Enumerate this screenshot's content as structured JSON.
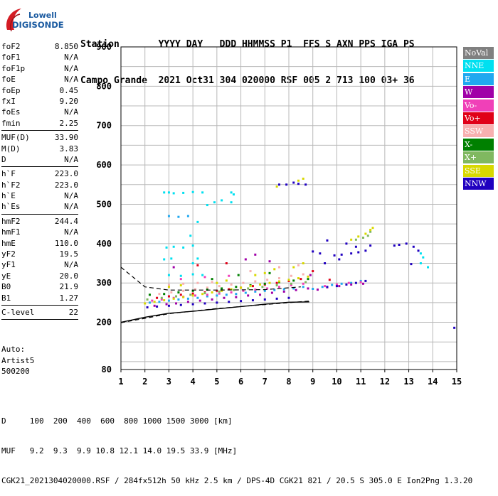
{
  "logo": {
    "line1": "Lowell",
    "line2": "DIGISONDE"
  },
  "header": {
    "line1": "Station       YYYY DAY   DDD HHMMSS P1  FFS S AXN PPS IGA PS",
    "line2": "Campo Grande  2021 Oct31 304 020000 RSF 005 2 713 100 03+ 36"
  },
  "params": {
    "group1": [
      {
        "name": "foF2",
        "value": "8.850"
      },
      {
        "name": "foF1",
        "value": "N/A"
      },
      {
        "name": "foF1p",
        "value": "N/A"
      },
      {
        "name": "foE",
        "value": "N/A"
      },
      {
        "name": "foEp",
        "value": "0.45"
      },
      {
        "name": "fxI",
        "value": "9.20"
      },
      {
        "name": "foEs",
        "value": "N/A"
      },
      {
        "name": "fmin",
        "value": "2.25"
      }
    ],
    "group2": [
      {
        "name": "MUF(D)",
        "value": "33.90"
      },
      {
        "name": "M(D)",
        "value": "3.83"
      },
      {
        "name": "D",
        "value": "N/A"
      }
    ],
    "group3": [
      {
        "name": "h`F",
        "value": "223.0"
      },
      {
        "name": "h`F2",
        "value": "223.0"
      },
      {
        "name": "h`E",
        "value": "N/A"
      },
      {
        "name": "h`Es",
        "value": "N/A"
      }
    ],
    "group4": [
      {
        "name": "hmF2",
        "value": "244.4"
      },
      {
        "name": "hmF1",
        "value": "N/A"
      },
      {
        "name": "hmE",
        "value": "110.0"
      },
      {
        "name": "yF2",
        "value": "19.5"
      },
      {
        "name": "yF1",
        "value": "N/A"
      },
      {
        "name": "yE",
        "value": "20.0"
      },
      {
        "name": "B0",
        "value": "21.9"
      },
      {
        "name": "B1",
        "value": "1.27"
      }
    ],
    "group5": [
      {
        "name": "C-level",
        "value": "22"
      }
    ]
  },
  "auto": {
    "line1": "Auto:",
    "line2": "Artist5",
    "line3": "500200"
  },
  "legend": [
    {
      "label": "NoVal",
      "color": "#808080",
      "text_color": "#ffffff"
    },
    {
      "label": "NNE",
      "color": "#00e0f0",
      "text_color": "#ffffff"
    },
    {
      "label": "E",
      "color": "#20a8f0",
      "text_color": "#ffffff"
    },
    {
      "label": "W",
      "color": "#a000a8",
      "text_color": "#ffffff"
    },
    {
      "label": "Vo-",
      "color": "#f040b8",
      "text_color": "#ffffff"
    },
    {
      "label": "Vo+",
      "color": "#e00018",
      "text_color": "#ffffff"
    },
    {
      "label": "SSW",
      "color": "#f8b0b0",
      "text_color": "#ffffff"
    },
    {
      "label": "X-",
      "color": "#008000",
      "text_color": "#ffffff"
    },
    {
      "label": "X+",
      "color": "#80b860",
      "text_color": "#ffffff"
    },
    {
      "label": "SSE",
      "color": "#d8d800",
      "text_color": "#ffffff"
    },
    {
      "label": "NNW",
      "color": "#2000c0",
      "text_color": "#ffffff"
    }
  ],
  "bottom": {
    "line1": "D     100  200  400  600  800 1000 1500 3000 [km]",
    "line2": "MUF   9.2  9.3  9.9 10.8 12.1 14.0 19.5 33.9 [MHz]",
    "line3": "CGK21_2021304020000.RSF / 284fx512h 50 kHz 2.5 km / DPS-4D CGK21 821 / 20.5 S 305.0 E Ion2Png 1.3.20"
  },
  "chart_data": {
    "type": "scatter",
    "title": "",
    "xlabel": "",
    "ylabel": "",
    "xlim": [
      1,
      15
    ],
    "ylim": [
      80,
      900
    ],
    "x_ticks": [
      "1",
      "2",
      "3",
      "4",
      "5",
      "6",
      "7",
      "8",
      "9",
      "10",
      "11",
      "12",
      "13",
      "14",
      "15"
    ],
    "y_ticks": [
      "80",
      "200",
      "300",
      "400",
      "500",
      "600",
      "700",
      "800",
      "900"
    ],
    "grid": true,
    "legend_position": "right",
    "profile_curve": [
      [
        1.0,
        200
      ],
      [
        2.0,
        213
      ],
      [
        3.0,
        223
      ],
      [
        4.0,
        228
      ],
      [
        5.0,
        234
      ],
      [
        6.0,
        240
      ],
      [
        7.0,
        246
      ],
      [
        8.0,
        251
      ],
      [
        8.85,
        252
      ]
    ],
    "trace_upper_dashed": [
      [
        1.0,
        340
      ],
      [
        2.0,
        290
      ],
      [
        3.0,
        282
      ],
      [
        5.0,
        282
      ],
      [
        7.0,
        283
      ],
      [
        8.5,
        290
      ]
    ],
    "trace_lower_dashed": [
      [
        1.0,
        199
      ],
      [
        2.0,
        210
      ],
      [
        3.0,
        222
      ],
      [
        5.0,
        235
      ],
      [
        7.0,
        245
      ],
      [
        8.0,
        250
      ],
      [
        8.85,
        254
      ]
    ],
    "series": [
      {
        "name": "NNE",
        "points": [
          [
            2.8,
            530
          ],
          [
            3.0,
            530
          ],
          [
            3.2,
            528
          ],
          [
            3.6,
            529
          ],
          [
            4.0,
            531
          ],
          [
            4.4,
            530
          ],
          [
            2.9,
            390
          ],
          [
            3.2,
            392
          ],
          [
            3.6,
            390
          ],
          [
            4.0,
            395
          ],
          [
            2.8,
            360
          ],
          [
            3.1,
            362
          ],
          [
            4.2,
            362
          ],
          [
            3.0,
            320
          ],
          [
            3.5,
            318
          ],
          [
            4.0,
            322
          ],
          [
            4.4,
            320
          ],
          [
            4.6,
            498
          ],
          [
            4.9,
            505
          ],
          [
            5.2,
            510
          ],
          [
            5.6,
            505
          ],
          [
            13.5,
            375
          ],
          [
            13.6,
            365
          ],
          [
            13.5,
            350
          ],
          [
            13.8,
            340
          ],
          [
            3.9,
            420
          ],
          [
            4.2,
            455
          ],
          [
            4.0,
            350
          ],
          [
            5.6,
            530
          ],
          [
            5.7,
            525
          ]
        ]
      },
      {
        "name": "E",
        "points": [
          [
            2.2,
            250
          ],
          [
            2.6,
            252
          ],
          [
            3.0,
            255
          ],
          [
            3.4,
            258
          ],
          [
            3.8,
            260
          ],
          [
            4.2,
            262
          ],
          [
            4.6,
            266
          ],
          [
            5.0,
            268
          ],
          [
            5.4,
            270
          ],
          [
            5.8,
            272
          ],
          [
            6.2,
            275
          ],
          [
            6.6,
            278
          ],
          [
            7.0,
            280
          ],
          [
            7.4,
            282
          ],
          [
            7.8,
            284
          ],
          [
            8.2,
            286
          ],
          [
            8.6,
            290
          ],
          [
            9.0,
            285
          ],
          [
            9.4,
            290
          ],
          [
            9.8,
            295
          ],
          [
            10.2,
            298
          ],
          [
            10.6,
            300
          ],
          [
            11.0,
            305
          ],
          [
            3.0,
            470
          ],
          [
            3.4,
            468
          ],
          [
            3.8,
            470
          ]
        ]
      },
      {
        "name": "W",
        "points": [
          [
            2.4,
            242
          ],
          [
            2.9,
            246
          ],
          [
            3.3,
            248
          ],
          [
            3.8,
            252
          ],
          [
            4.3,
            255
          ],
          [
            4.8,
            258
          ],
          [
            5.3,
            262
          ],
          [
            5.8,
            264
          ],
          [
            6.3,
            268
          ],
          [
            6.8,
            270
          ],
          [
            7.3,
            275
          ],
          [
            7.8,
            278
          ],
          [
            8.3,
            282
          ],
          [
            8.8,
            286
          ],
          [
            9.2,
            283
          ],
          [
            9.6,
            289
          ],
          [
            10.1,
            292
          ],
          [
            10.6,
            296
          ],
          [
            11.1,
            298
          ],
          [
            6.2,
            360
          ],
          [
            6.6,
            372
          ],
          [
            7.2,
            355
          ],
          [
            3.2,
            340
          ],
          [
            8.9,
            320
          ]
        ]
      },
      {
        "name": "Vo-",
        "points": [
          [
            2.3,
            255
          ],
          [
            2.7,
            258
          ],
          [
            3.2,
            262
          ],
          [
            3.6,
            265
          ],
          [
            4.1,
            268
          ],
          [
            4.6,
            270
          ],
          [
            5.1,
            273
          ],
          [
            5.6,
            276
          ],
          [
            6.1,
            280
          ],
          [
            6.6,
            283
          ],
          [
            7.1,
            286
          ],
          [
            7.6,
            290
          ],
          [
            8.1,
            294
          ],
          [
            8.6,
            298
          ],
          [
            9.5,
            292
          ],
          [
            10.0,
            296
          ],
          [
            10.5,
            300
          ],
          [
            11.0,
            302
          ],
          [
            3.5,
            310
          ],
          [
            4.5,
            315
          ],
          [
            5.5,
            318
          ]
        ]
      },
      {
        "name": "Vo+",
        "points": [
          [
            2.5,
            262
          ],
          [
            3.0,
            266
          ],
          [
            3.5,
            270
          ],
          [
            4.0,
            273
          ],
          [
            4.5,
            276
          ],
          [
            5.0,
            280
          ],
          [
            5.5,
            284
          ],
          [
            6.0,
            288
          ],
          [
            6.5,
            292
          ],
          [
            7.0,
            296
          ],
          [
            7.5,
            300
          ],
          [
            8.0,
            305
          ],
          [
            8.5,
            310
          ],
          [
            4.2,
            345
          ],
          [
            5.4,
            350
          ],
          [
            9.0,
            330
          ],
          [
            9.7,
            308
          ]
        ]
      },
      {
        "name": "SSW",
        "points": [
          [
            2.6,
            272
          ],
          [
            3.1,
            276
          ],
          [
            3.6,
            280
          ],
          [
            4.1,
            284
          ],
          [
            4.6,
            288
          ],
          [
            5.1,
            292
          ],
          [
            5.6,
            296
          ],
          [
            6.1,
            300
          ],
          [
            6.6,
            304
          ],
          [
            7.1,
            308
          ],
          [
            7.6,
            312
          ],
          [
            8.1,
            318
          ],
          [
            8.6,
            322
          ],
          [
            3.0,
            295
          ],
          [
            3.6,
            298
          ],
          [
            4.2,
            300
          ],
          [
            4.8,
            302
          ],
          [
            6.4,
            330
          ],
          [
            7.6,
            340
          ],
          [
            8.4,
            345
          ]
        ]
      },
      {
        "name": "X-",
        "points": [
          [
            2.2,
            270
          ],
          [
            2.8,
            272
          ],
          [
            3.4,
            276
          ],
          [
            4.0,
            280
          ],
          [
            4.6,
            283
          ],
          [
            5.2,
            286
          ],
          [
            5.8,
            290
          ],
          [
            6.4,
            294
          ],
          [
            7.0,
            298
          ],
          [
            7.6,
            302
          ],
          [
            8.2,
            306
          ],
          [
            8.8,
            310
          ],
          [
            4.8,
            310
          ],
          [
            5.9,
            320
          ],
          [
            7.2,
            325
          ]
        ]
      },
      {
        "name": "X+",
        "points": [
          [
            2.1,
            258
          ],
          [
            2.7,
            262
          ],
          [
            3.3,
            266
          ],
          [
            3.9,
            270
          ],
          [
            4.5,
            274
          ],
          [
            5.1,
            278
          ],
          [
            5.7,
            282
          ],
          [
            6.3,
            286
          ],
          [
            6.9,
            290
          ],
          [
            7.5,
            294
          ],
          [
            8.1,
            298
          ],
          [
            8.7,
            302
          ],
          [
            10.8,
            410
          ],
          [
            11.1,
            415
          ],
          [
            11.3,
            420
          ],
          [
            11.4,
            430
          ]
        ]
      },
      {
        "name": "SSE",
        "points": [
          [
            2.0,
            248
          ],
          [
            2.4,
            252
          ],
          [
            2.8,
            256
          ],
          [
            3.2,
            260
          ],
          [
            3.6,
            264
          ],
          [
            4.0,
            268
          ],
          [
            4.4,
            272
          ],
          [
            4.8,
            276
          ],
          [
            5.2,
            280
          ],
          [
            5.6,
            284
          ],
          [
            6.0,
            288
          ],
          [
            6.4,
            292
          ],
          [
            6.8,
            296
          ],
          [
            7.2,
            300
          ],
          [
            7.6,
            304
          ],
          [
            8.0,
            308
          ],
          [
            8.4,
            312
          ],
          [
            8.8,
            316
          ],
          [
            3.0,
            290
          ],
          [
            3.5,
            294
          ],
          [
            5.0,
            300
          ],
          [
            5.4,
            306
          ],
          [
            6.6,
            320
          ],
          [
            7.0,
            325
          ],
          [
            7.4,
            335
          ],
          [
            8.2,
            340
          ],
          [
            8.6,
            350
          ],
          [
            8.4,
            560
          ],
          [
            8.6,
            565
          ],
          [
            7.5,
            545
          ],
          [
            10.6,
            410
          ],
          [
            10.9,
            418
          ],
          [
            11.2,
            425
          ],
          [
            11.4,
            435
          ],
          [
            11.5,
            440
          ]
        ]
      },
      {
        "name": "NNW",
        "points": [
          [
            2.1,
            238
          ],
          [
            2.5,
            240
          ],
          [
            3.0,
            242
          ],
          [
            3.5,
            244
          ],
          [
            4.0,
            246
          ],
          [
            4.5,
            248
          ],
          [
            5.0,
            250
          ],
          [
            5.5,
            252
          ],
          [
            6.0,
            254
          ],
          [
            6.5,
            256
          ],
          [
            7.0,
            258
          ],
          [
            7.5,
            260
          ],
          [
            8.0,
            262
          ],
          [
            9.6,
            290
          ],
          [
            10.0,
            292
          ],
          [
            10.4,
            296
          ],
          [
            10.8,
            300
          ],
          [
            11.2,
            305
          ],
          [
            9.9,
            370
          ],
          [
            10.2,
            372
          ],
          [
            10.6,
            375
          ],
          [
            10.9,
            378
          ],
          [
            11.2,
            382
          ],
          [
            11.4,
            395
          ],
          [
            10.4,
            400
          ],
          [
            10.8,
            392
          ],
          [
            12.4,
            395
          ],
          [
            12.6,
            397
          ],
          [
            12.9,
            400
          ],
          [
            13.2,
            392
          ],
          [
            13.4,
            382
          ],
          [
            13.1,
            348
          ],
          [
            14.9,
            186
          ],
          [
            9.5,
            350
          ],
          [
            10.1,
            360
          ],
          [
            7.6,
            550
          ],
          [
            7.9,
            550
          ],
          [
            8.2,
            555
          ],
          [
            8.4,
            552
          ],
          [
            8.7,
            550
          ],
          [
            9.6,
            408
          ],
          [
            9.3,
            375
          ],
          [
            9.0,
            380
          ]
        ]
      }
    ]
  }
}
